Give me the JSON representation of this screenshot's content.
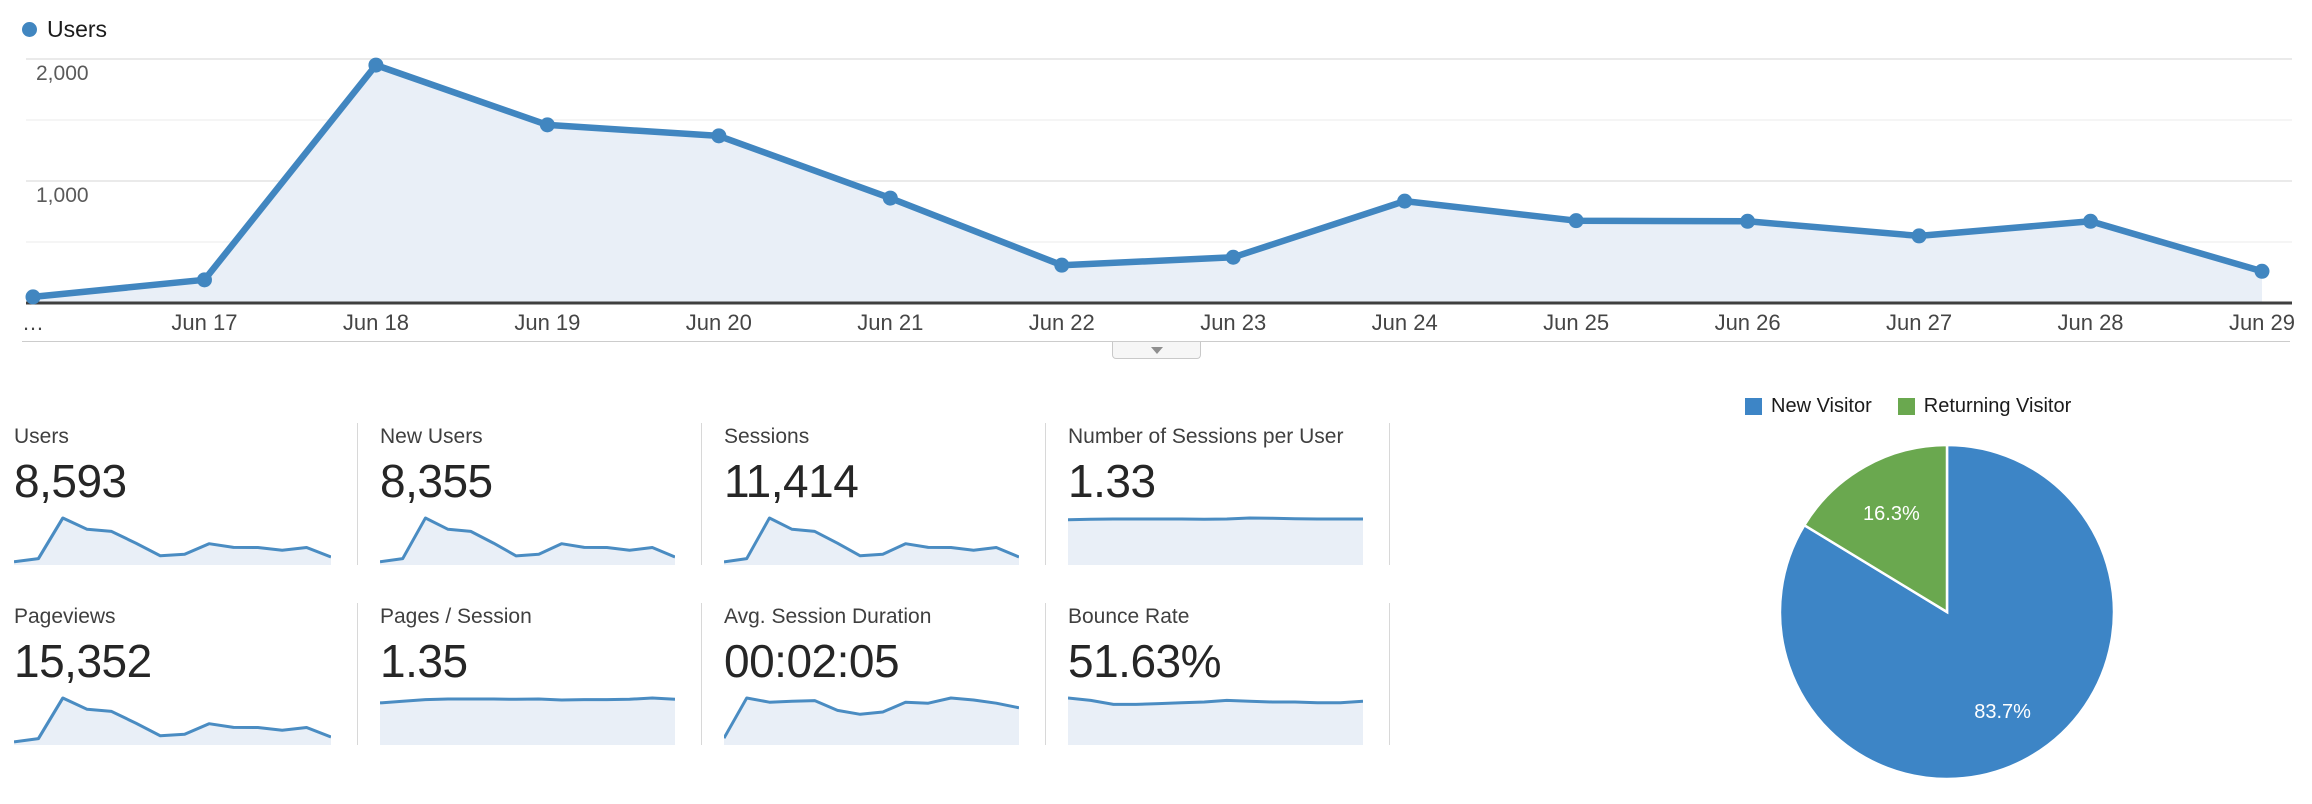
{
  "ui": {
    "line_color": "#4186c0",
    "area_fill": "#e9eff7",
    "spark_line": "#4a8cc2",
    "grid_major": "#e4e4e4",
    "grid_minor": "#f2f2f2",
    "axis_color": "#3f3f3f",
    "pie_blue": "#3d85c6",
    "pie_green": "#6aa84f"
  },
  "chart_data": [
    {
      "type": "area",
      "title": "Users",
      "legend_label": "Users",
      "legend_position": "top-left",
      "grid": true,
      "x": [
        "…",
        "Jun 17",
        "Jun 18",
        "Jun 19",
        "Jun 20",
        "Jun 21",
        "Jun 22",
        "Jun 23",
        "Jun 24",
        "Jun 25",
        "Jun 26",
        "Jun 27",
        "Jun 28",
        "Jun 29"
      ],
      "series": [
        {
          "name": "Users",
          "values": [
            50,
            190,
            1950,
            1460,
            1370,
            860,
            310,
            375,
            835,
            675,
            670,
            550,
            670,
            260
          ]
        }
      ],
      "ylim": [
        0,
        2150
      ],
      "yticks": [
        {
          "v": 500,
          "label": ""
        },
        {
          "v": 1000,
          "label": "1,000"
        },
        {
          "v": 1500,
          "label": ""
        },
        {
          "v": 2000,
          "label": "2,000"
        }
      ]
    },
    {
      "type": "pie",
      "labels": [
        "New Visitor",
        "Returning Visitor"
      ],
      "values": [
        83.7,
        16.3
      ],
      "value_labels": [
        "83.7%",
        "16.3%"
      ],
      "colors": [
        "#3d85c6",
        "#6aa84f"
      ],
      "legend_position": "top-right"
    }
  ],
  "metric_cards": [
    {
      "label": "Users",
      "value": "8,593",
      "spark": [
        50,
        190,
        1950,
        1460,
        1370,
        860,
        310,
        375,
        835,
        675,
        670,
        550,
        670,
        260
      ]
    },
    {
      "label": "New Users",
      "value": "8,355",
      "spark": [
        49,
        185,
        1895,
        1420,
        1332,
        836,
        301,
        365,
        812,
        656,
        651,
        535,
        651,
        253
      ]
    },
    {
      "label": "Sessions",
      "value": "11,414",
      "spark": [
        66,
        252,
        2590,
        1939,
        1819,
        1142,
        412,
        498,
        1109,
        896,
        890,
        730,
        890,
        345
      ]
    },
    {
      "label": "Number of Sessions per User",
      "value": "1.33",
      "spark": [
        1.31,
        1.32,
        1.33,
        1.33,
        1.33,
        1.33,
        1.32,
        1.33,
        1.36,
        1.35,
        1.34,
        1.33,
        1.33,
        1.33
      ]
    },
    {
      "label": "Pageviews",
      "value": "15,352",
      "spark": [
        89,
        339,
        3483,
        2608,
        2447,
        1536,
        554,
        670,
        1491,
        1206,
        1197,
        982,
        1197,
        464
      ]
    },
    {
      "label": "Pages / Session",
      "value": "1.35",
      "spark": [
        1.22,
        1.27,
        1.32,
        1.34,
        1.34,
        1.34,
        1.33,
        1.34,
        1.31,
        1.32,
        1.32,
        1.33,
        1.37,
        1.33
      ]
    },
    {
      "label": "Avg. Session Duration",
      "value": "00:02:05",
      "spark": [
        15,
        138,
        125,
        128,
        130,
        100,
        88,
        95,
        125,
        122,
        138,
        132,
        122,
        108
      ]
    },
    {
      "label": "Bounce Rate",
      "value": "51.63%",
      "spark": [
        56,
        53,
        48,
        48,
        49,
        50,
        51,
        53,
        52,
        51,
        51,
        50,
        50,
        52
      ]
    }
  ]
}
